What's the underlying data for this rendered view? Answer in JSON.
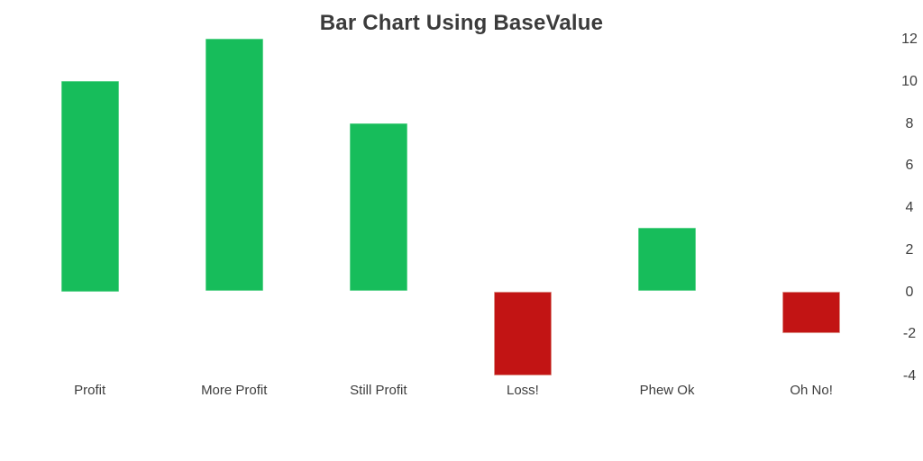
{
  "title": "Bar Chart Using BaseValue",
  "chart_data": {
    "type": "bar",
    "title": "Bar Chart Using BaseValue",
    "categories": [
      "Profit",
      "More Profit",
      "Still Profit",
      "Loss!",
      "Phew Ok",
      "Oh No!"
    ],
    "values": [
      10,
      12,
      8,
      -4,
      3,
      -2
    ],
    "base_value": 0,
    "y_ticks": [
      "12",
      "10",
      "8",
      "6",
      "4",
      "2",
      "0",
      "-2",
      "-4"
    ],
    "ylim": [
      -4.5,
      12.5
    ],
    "xlabel": "",
    "ylabel": "",
    "grid": false,
    "legend": "none",
    "y_axis_position": "right",
    "colors": {
      "positive_fill": "#17bd5b",
      "positive_edge": "#5ed38d",
      "negative_fill": "#c21414",
      "negative_edge": "#dd8e86",
      "title_text": "#3b3b3b",
      "axis_text": "#3d3d3d",
      "background": "#ffffff"
    }
  }
}
